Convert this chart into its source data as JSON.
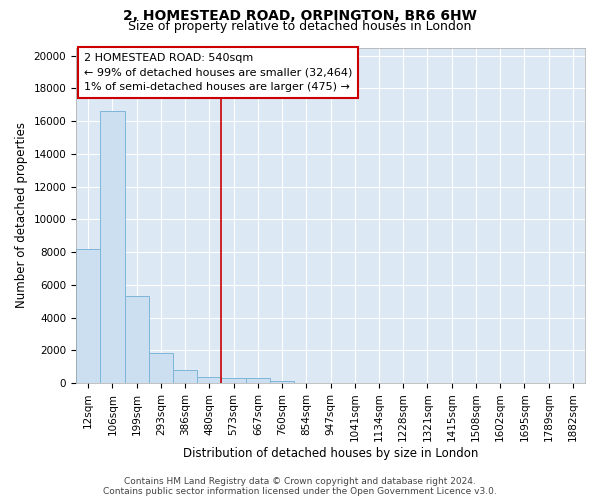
{
  "title1": "2, HOMESTEAD ROAD, ORPINGTON, BR6 6HW",
  "title2": "Size of property relative to detached houses in London",
  "xlabel": "Distribution of detached houses by size in London",
  "ylabel": "Number of detached properties",
  "bar_labels": [
    "12sqm",
    "106sqm",
    "199sqm",
    "293sqm",
    "386sqm",
    "480sqm",
    "573sqm",
    "667sqm",
    "760sqm",
    "854sqm",
    "947sqm",
    "1041sqm",
    "1134sqm",
    "1228sqm",
    "1321sqm",
    "1415sqm",
    "1508sqm",
    "1602sqm",
    "1695sqm",
    "1789sqm",
    "1882sqm"
  ],
  "bar_values": [
    8200,
    16600,
    5300,
    1850,
    800,
    350,
    300,
    290,
    150,
    0,
    0,
    0,
    0,
    0,
    0,
    0,
    0,
    0,
    0,
    0,
    0
  ],
  "bar_color": "#ccdff0",
  "bar_edge_color": "#7eb5d8",
  "red_line_index": 6,
  "red_line_color": "#cc0000",
  "annotation_line1": "2 HOMESTEAD ROAD: 540sqm",
  "annotation_line2": "← 99% of detached houses are smaller (32,464)",
  "annotation_line3": "1% of semi-detached houses are larger (475) →",
  "annotation_box_facecolor": "#ffffff",
  "annotation_box_edgecolor": "#cc0000",
  "ylim": [
    0,
    20500
  ],
  "yticks": [
    0,
    2000,
    4000,
    6000,
    8000,
    10000,
    12000,
    14000,
    16000,
    18000,
    20000
  ],
  "plot_bg_color": "#dce9f5",
  "grid_color": "#ffffff",
  "fig_bg_color": "#ffffff",
  "footer_text": "Contains HM Land Registry data © Crown copyright and database right 2024.\nContains public sector information licensed under the Open Government Licence v3.0.",
  "title1_fontsize": 10,
  "title2_fontsize": 9,
  "xlabel_fontsize": 8.5,
  "ylabel_fontsize": 8.5,
  "tick_fontsize": 7.5,
  "annotation_fontsize": 8,
  "footer_fontsize": 6.5
}
